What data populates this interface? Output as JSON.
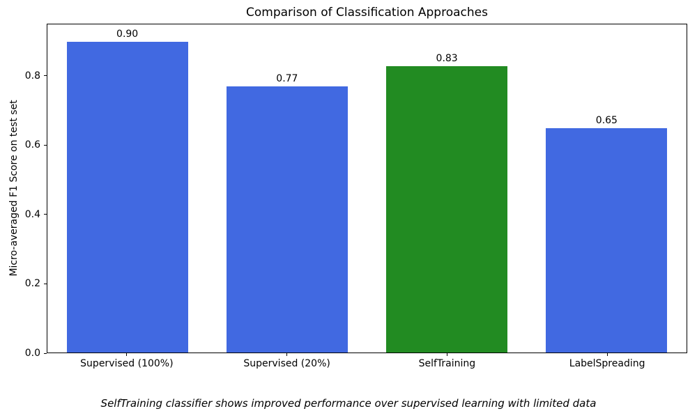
{
  "chart_data": {
    "type": "bar",
    "title": "Comparison of Classification Approaches",
    "xlabel": "",
    "ylabel": "Micro-averaged F1 Score on test set",
    "categories": [
      "Supervised (100%)",
      "Supervised (20%)",
      "SelfTraining",
      "LabelSpreading"
    ],
    "values": [
      0.9,
      0.77,
      0.83,
      0.65
    ],
    "value_labels": [
      "0.90",
      "0.77",
      "0.83",
      "0.65"
    ],
    "bar_colors": [
      "#4169e1",
      "#4169e1",
      "#228b22",
      "#4169e1"
    ],
    "ylim": [
      0,
      0.95
    ],
    "yticks": [
      {
        "v": 0.0,
        "label": "0.0"
      },
      {
        "v": 0.2,
        "label": "0.2"
      },
      {
        "v": 0.4,
        "label": "0.4"
      },
      {
        "v": 0.6,
        "label": "0.6"
      },
      {
        "v": 0.8,
        "label": "0.8"
      }
    ],
    "grid": false,
    "legend": null,
    "caption": "SelfTraining classifier shows improved performance over supervised learning with limited data"
  },
  "colors": {
    "background": "#ffffff",
    "axis": "#000000",
    "bar_blue": "#4169e1",
    "bar_green": "#228b22"
  }
}
